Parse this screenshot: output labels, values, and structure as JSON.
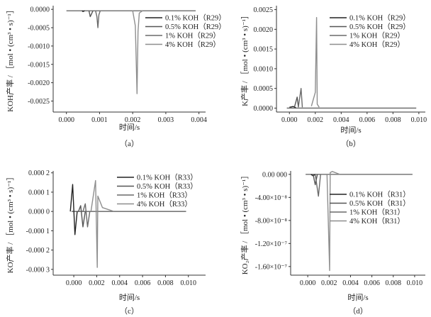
{
  "chart_data": [
    {
      "type": "line",
      "caption": "（a）",
      "xlabel": "时间/s",
      "ylabel": "KOH产率 / ［mol • (cm³ • s)⁻¹］",
      "xlim": [
        -0.0004,
        0.0042
      ],
      "ylim": [
        -0.0028,
        0.0001
      ],
      "x_ticks": [
        "0.000",
        "0.001",
        "0.002",
        "0.003",
        "0.004"
      ],
      "y_ticks": [
        "0.0000",
        "-0.0005",
        "-0.0010",
        "-0.0015",
        "-0.0020",
        "-0.0025"
      ],
      "baseline_y": -4e-05,
      "x_end": 0.0039,
      "series": [
        {
          "name": "0.1% KOH（R29）",
          "color": "#222222",
          "x": [
            0.00047,
            0.0005,
            0.00055
          ],
          "y": [
            -4e-05,
            -6e-05,
            -4e-05
          ]
        },
        {
          "name": "0.5% KOH（R29）",
          "color": "#555555",
          "x": [
            0.00068,
            0.00072,
            0.00076,
            0.0008
          ],
          "y": [
            -4e-05,
            -0.0002,
            -0.00012,
            -4e-05
          ]
        },
        {
          "name": "1% KOH（R29）",
          "color": "#6a6a6a",
          "x": [
            0.00088,
            0.00092,
            0.00095,
            0.00098,
            0.00102
          ],
          "y": [
            -4e-05,
            -0.0002,
            -0.0005,
            -0.00015,
            -4e-05
          ]
        },
        {
          "name": "4% KOH（R29）",
          "color": "#8e8e8e",
          "x": [
            0.002,
            0.00208,
            0.00213,
            0.00216,
            0.0022,
            0.0023
          ],
          "y": [
            -4e-05,
            -0.00045,
            -0.0023,
            -0.0006,
            -0.0001,
            -4e-05
          ]
        }
      ]
    },
    {
      "type": "line",
      "caption": "（b）",
      "xlabel": "时间/s",
      "ylabel": "K产率 / ［mol • (cm³ • s)⁻¹］",
      "xlim": [
        -0.001,
        0.0105
      ],
      "ylim": [
        -0.0001,
        0.0026
      ],
      "x_ticks": [
        "0.000",
        "0.002",
        "0.004",
        "0.006",
        "0.008",
        "0.010"
      ],
      "y_ticks": [
        "0.0000",
        "0.0005",
        "0.0010",
        "0.0015",
        "0.0020",
        "0.0025"
      ],
      "baseline_y": 0.0,
      "x_end": 0.0098,
      "series": [
        {
          "name": "0.1% KOH（R29）",
          "color": "#222222",
          "x": [
            0.0,
            0.0003,
            0.0005
          ],
          "y": [
            2e-05,
            4e-05,
            1e-05
          ]
        },
        {
          "name": "0.5% KOH（R29）",
          "color": "#555555",
          "x": [
            0.0004,
            0.0006,
            0.0007
          ],
          "y": [
            4e-05,
            0.00028,
            2e-05
          ]
        },
        {
          "name": "1% KOH（R29）",
          "color": "#6a6a6a",
          "x": [
            0.0007,
            0.0009,
            0.001
          ],
          "y": [
            4e-05,
            0.0005,
            2e-05
          ]
        },
        {
          "name": "4% KOH（R29）",
          "color": "#8e8e8e",
          "x": [
            0.0017,
            0.002,
            0.0021,
            0.00215,
            0.0023
          ],
          "y": [
            5e-05,
            0.0004,
            0.0023,
            0.0001,
            2e-05
          ]
        }
      ]
    },
    {
      "type": "line",
      "caption": "（c）",
      "xlabel": "时间/s",
      "ylabel": "KO产率 / ［mol • (cm³ • s)⁻¹］",
      "xlim": [
        -0.0018,
        0.0115
      ],
      "ylim": [
        -0.00033,
        0.00021
      ],
      "x_ticks": [
        "0.000",
        "0.002",
        "0.004",
        "0.006",
        "0.008",
        "0.010"
      ],
      "y_ticks": [
        "0.000 2",
        "0.000 1",
        "0.000 0",
        "-0.000 1",
        "-0.000 2",
        "-0.000 3"
      ],
      "baseline_y": 0.0,
      "x_end": 0.0098,
      "series": [
        {
          "name": "0.1% KOH（R33）",
          "color": "#222222",
          "x": [
            -0.0003,
            -0.0001,
            0.0001,
            0.0003
          ],
          "y": [
            0.0,
            0.00014,
            -0.00012,
            0.0
          ]
        },
        {
          "name": "0.5% KOH（R33）",
          "color": "#555555",
          "x": [
            0.0004,
            0.0006,
            0.0008,
            0.001
          ],
          "y": [
            0.0,
            3e-05,
            -8e-05,
            0.0
          ]
        },
        {
          "name": "1% KOH（R33）",
          "color": "#6a6a6a",
          "x": [
            0.0008,
            0.001,
            0.0012,
            0.0014
          ],
          "y": [
            0.0,
            4e-05,
            -8e-05,
            0.0
          ]
        },
        {
          "name": "4% KOH（R33）",
          "color": "#8e8e8e",
          "x": [
            0.0015,
            0.0019,
            0.00205,
            0.0021,
            0.0025,
            0.0035
          ],
          "y": [
            0.0,
            0.00016,
            -0.00029,
            8e-05,
            2e-05,
            0.0
          ]
        }
      ]
    },
    {
      "type": "line",
      "caption": "（d）",
      "xlabel": "时间/s",
      "ylabel": "KO₂产率 / ［mol • (cm³ • s)⁻¹］",
      "xlim": [
        -0.0016,
        0.011
      ],
      "ylim": [
        -1.75e-07,
        6e-09
      ],
      "x_ticks": [
        "0.000",
        "0.002",
        "0.004",
        "0.006",
        "0.008",
        "0.010"
      ],
      "y_ticks": [
        "0.00 000",
        "-4.00×10⁻⁸",
        "-8.00×10⁻⁸",
        "-1.20×10⁻⁷",
        "-1.60×10⁻⁷"
      ],
      "baseline_y": 0.0,
      "x_end": 0.0098,
      "series": [
        {
          "name": "0.1% KOH（R31）",
          "color": "#222222",
          "x": [
            0.0003,
            0.0005,
            0.0007
          ],
          "y": [
            0.0,
            -2.5e-09,
            0.0
          ]
        },
        {
          "name": "0.5% KOH（R31）",
          "color": "#555555",
          "x": [
            0.0005,
            0.0007,
            0.0009
          ],
          "y": [
            0.0,
            -1.8e-08,
            0.0
          ]
        },
        {
          "name": "1% KOH（R31）",
          "color": "#6a6a6a",
          "x": [
            0.0007,
            0.001,
            0.0012
          ],
          "y": [
            0.0,
            -3.8e-08,
            0.0
          ]
        },
        {
          "name": "4% KOH（R31）",
          "color": "#8e8e8e",
          "x": [
            0.0018,
            0.00205,
            0.0021,
            0.0023,
            0.003
          ],
          "y": [
            0.0,
            -1.67e-07,
            3e-09,
            5e-09,
            0.0
          ]
        }
      ]
    }
  ]
}
